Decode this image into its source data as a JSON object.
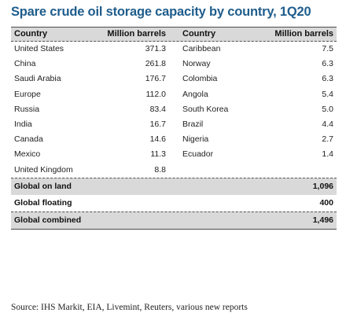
{
  "chart_data": {
    "type": "table",
    "title": "Spare crude oil storage capacity by country, 1Q20",
    "columns": [
      "Country",
      "Million barrels",
      "Country",
      "Million barrels"
    ],
    "left_rows": [
      {
        "country": "United States",
        "value": "371.3"
      },
      {
        "country": "China",
        "value": "261.8"
      },
      {
        "country": "Saudi Arabia",
        "value": "176.7"
      },
      {
        "country": "Europe",
        "value": "112.0"
      },
      {
        "country": "Russia",
        "value": "83.4"
      },
      {
        "country": "India",
        "value": "16.7"
      },
      {
        "country": "Canada",
        "value": "14.6"
      },
      {
        "country": "Mexico",
        "value": "11.3"
      },
      {
        "country": "United Kingdom",
        "value": "8.8"
      }
    ],
    "right_rows": [
      {
        "country": "Caribbean",
        "value": "7.5"
      },
      {
        "country": "Norway",
        "value": "6.3"
      },
      {
        "country": "Colombia",
        "value": "6.3"
      },
      {
        "country": "Angola",
        "value": "5.4"
      },
      {
        "country": "South Korea",
        "value": "5.0"
      },
      {
        "country": "Brazil",
        "value": "4.4"
      },
      {
        "country": "Nigeria",
        "value": "2.7"
      },
      {
        "country": "Ecuador",
        "value": "1.4"
      }
    ],
    "summary": [
      {
        "label": "Global on land",
        "value": "1,096"
      },
      {
        "label": "Global floating",
        "value": "400"
      },
      {
        "label": "Global combined",
        "value": "1,496"
      }
    ],
    "source": "Source: IHS Markit, EIA, Livemint, Reuters, various new reports",
    "colors": {
      "title": "#1f5d8c",
      "header_bg": "#d9d9d9"
    }
  }
}
